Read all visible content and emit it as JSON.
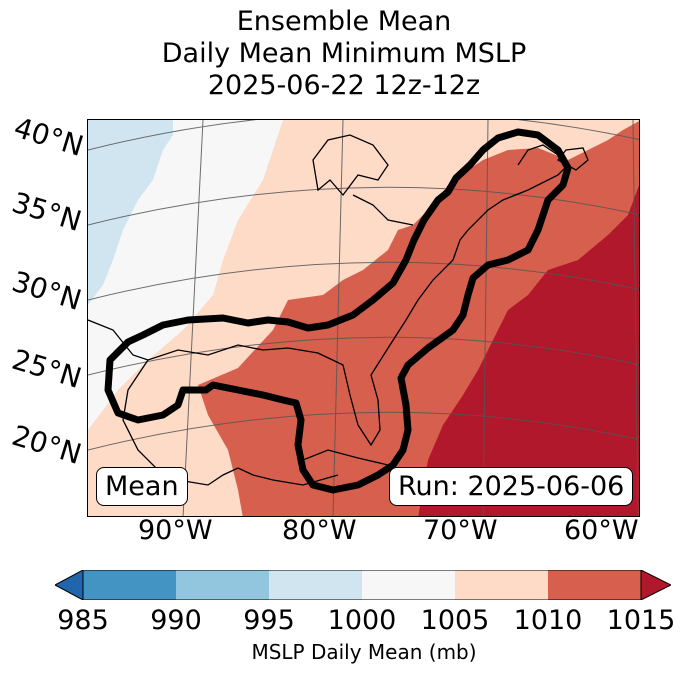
{
  "title": {
    "line1": "Ensemble Mean",
    "line2": "Daily Mean Minimum MSLP",
    "line3": "2025-06-22 12z-12z"
  },
  "map": {
    "lat_labels": [
      "40°N",
      "35°N",
      "30°N",
      "25°N",
      "20°N"
    ],
    "lon_labels": [
      "90°W",
      "80°W",
      "70°W",
      "60°W"
    ],
    "mean_label": "Mean",
    "run_label": "Run: 2025-06-06",
    "colors": {
      "c985": "#4393c3",
      "c990": "#92c5de",
      "c995": "#d1e5f0",
      "c1000": "#f7f7f7",
      "c1005": "#fddbc7",
      "c1010": "#d6604d",
      "c1015": "#b2182b",
      "under": "#2166ac",
      "contour": "#000000"
    }
  },
  "colorbar": {
    "ticks": [
      "985",
      "990",
      "995",
      "1000",
      "1005",
      "1010",
      "1015"
    ],
    "label": "MSLP Daily Mean (mb)"
  }
}
